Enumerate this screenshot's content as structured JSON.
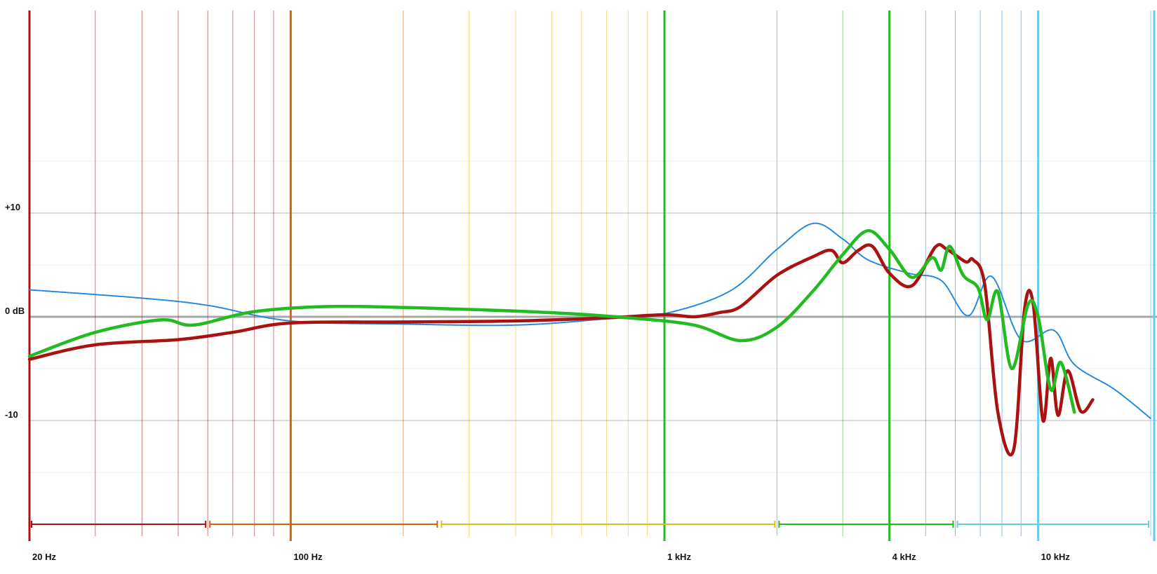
{
  "chart_data": {
    "type": "line",
    "x_scale": "log",
    "x_range_hz": [
      20,
      20000
    ],
    "y_range_db": [
      -21,
      30
    ],
    "grid": true,
    "y_tick_labels": [
      {
        "value": 10,
        "label": "+10"
      },
      {
        "value": 0,
        "label": "0 dB"
      },
      {
        "value": -10,
        "label": "-10"
      }
    ],
    "x_tick_labels": [
      {
        "value": 20,
        "label": "20 Hz"
      },
      {
        "value": 100,
        "label": "100 Hz"
      },
      {
        "value": 1000,
        "label": "1 kHz"
      },
      {
        "value": 4000,
        "label": "4 kHz"
      },
      {
        "value": 10000,
        "label": "10 kHz"
      }
    ],
    "band_colors": {
      "sub_bass": "#aa1111",
      "bass": "#cc6611",
      "mid": "#e6bb22",
      "upper_mid": "#22bb22",
      "presence": "#2288dd",
      "air": "#66ccee"
    },
    "band_ranges_hz": [
      {
        "from": 20,
        "to": 60,
        "color": "#aa1111"
      },
      {
        "from": 60,
        "to": 250,
        "color": "#cc6611"
      },
      {
        "from": 250,
        "to": 2000,
        "color": "#e6bb22"
      },
      {
        "from": 2000,
        "to": 6000,
        "color": "#22bb22"
      },
      {
        "from": 6000,
        "to": 20000,
        "color": "#66ccee"
      }
    ],
    "series": [
      {
        "color": "#2288dd",
        "style": "dotted-thin",
        "points": [
          [
            20,
            2.6
          ],
          [
            40,
            1.8
          ],
          [
            60,
            1.1
          ],
          [
            100,
            -0.4
          ],
          [
            200,
            -0.7
          ],
          [
            400,
            -0.8
          ],
          [
            700,
            -0.2
          ],
          [
            1000,
            0.3
          ],
          [
            1500,
            2.5
          ],
          [
            2000,
            6.5
          ],
          [
            2500,
            9.0
          ],
          [
            3000,
            7.5
          ],
          [
            3500,
            5.5
          ],
          [
            4500,
            4.2
          ],
          [
            5500,
            3.5
          ],
          [
            6500,
            0.1
          ],
          [
            7500,
            3.9
          ],
          [
            9000,
            -2.2
          ],
          [
            11000,
            -1.3
          ],
          [
            12500,
            -4.6
          ],
          [
            16000,
            -7.0
          ],
          [
            20000,
            -9.8
          ]
        ]
      },
      {
        "color": "#aa1111",
        "style": "solid-thick",
        "points": [
          [
            20,
            -4.1
          ],
          [
            30,
            -2.7
          ],
          [
            50,
            -2.2
          ],
          [
            70,
            -1.5
          ],
          [
            100,
            -0.6
          ],
          [
            200,
            -0.5
          ],
          [
            400,
            -0.4
          ],
          [
            700,
            -0.1
          ],
          [
            1000,
            0.2
          ],
          [
            1200,
            0.0
          ],
          [
            1400,
            0.4
          ],
          [
            1600,
            1.0
          ],
          [
            2000,
            4.0
          ],
          [
            2500,
            5.8
          ],
          [
            2800,
            6.4
          ],
          [
            3000,
            5.2
          ],
          [
            3300,
            6.4
          ],
          [
            3600,
            6.8
          ],
          [
            4000,
            4.2
          ],
          [
            4600,
            3.0
          ],
          [
            5300,
            6.7
          ],
          [
            5700,
            6.5
          ],
          [
            6400,
            5.3
          ],
          [
            6700,
            5.5
          ],
          [
            7200,
            3.0
          ],
          [
            7800,
            -9.2
          ],
          [
            8600,
            -12.8
          ],
          [
            9200,
            0.8
          ],
          [
            9700,
            1.2
          ],
          [
            10300,
            -10.0
          ],
          [
            10800,
            -4.0
          ],
          [
            11300,
            -9.5
          ],
          [
            12000,
            -5.2
          ],
          [
            13000,
            -9.1
          ],
          [
            14000,
            -8.0
          ]
        ]
      },
      {
        "color": "#22bb22",
        "style": "solid-thick",
        "points": [
          [
            20,
            -3.8
          ],
          [
            30,
            -1.5
          ],
          [
            45,
            -0.3
          ],
          [
            55,
            -0.8
          ],
          [
            80,
            0.5
          ],
          [
            130,
            1.0
          ],
          [
            250,
            0.8
          ],
          [
            500,
            0.4
          ],
          [
            800,
            -0.1
          ],
          [
            1200,
            -0.8
          ],
          [
            1600,
            -2.3
          ],
          [
            2000,
            -1.0
          ],
          [
            2500,
            2.5
          ],
          [
            3000,
            6.0
          ],
          [
            3500,
            8.3
          ],
          [
            4000,
            6.5
          ],
          [
            4600,
            3.8
          ],
          [
            5200,
            5.7
          ],
          [
            5500,
            4.5
          ],
          [
            5800,
            6.8
          ],
          [
            6300,
            4.0
          ],
          [
            6900,
            2.8
          ],
          [
            7300,
            -0.3
          ],
          [
            7800,
            2.4
          ],
          [
            8500,
            -5.0
          ],
          [
            9400,
            1.2
          ],
          [
            10000,
            0.0
          ],
          [
            10800,
            -7.0
          ],
          [
            11500,
            -4.4
          ],
          [
            12500,
            -9.2
          ]
        ]
      }
    ]
  }
}
